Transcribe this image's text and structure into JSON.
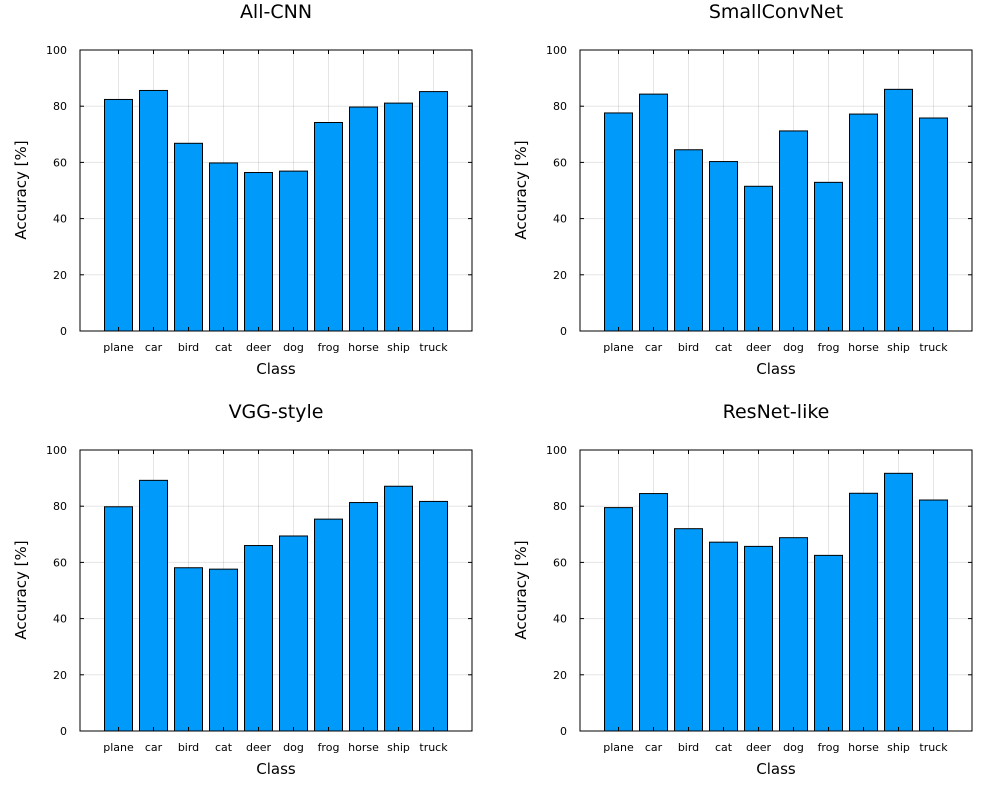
{
  "chart_data": [
    {
      "type": "bar",
      "title": "All-CNN",
      "xlabel": "Class",
      "ylabel": "Accuracy [%]",
      "categories": [
        "plane",
        "car",
        "bird",
        "cat",
        "deer",
        "dog",
        "frog",
        "horse",
        "ship",
        "truck"
      ],
      "values": [
        82.4,
        85.6,
        66.8,
        59.8,
        56.4,
        56.9,
        74.2,
        79.7,
        81.1,
        85.2
      ],
      "ylim": [
        0,
        100
      ],
      "yticks": [
        0,
        20,
        40,
        60,
        80,
        100
      ],
      "grid": true,
      "color": "#009AFA"
    },
    {
      "type": "bar",
      "title": "SmallConvNet",
      "xlabel": "Class",
      "ylabel": "Accuracy [%]",
      "categories": [
        "plane",
        "car",
        "bird",
        "cat",
        "deer",
        "dog",
        "frog",
        "horse",
        "ship",
        "truck"
      ],
      "values": [
        77.6,
        84.3,
        64.5,
        60.3,
        51.5,
        71.2,
        52.9,
        77.2,
        86.0,
        75.8
      ],
      "ylim": [
        0,
        100
      ],
      "yticks": [
        0,
        20,
        40,
        60,
        80,
        100
      ],
      "grid": true,
      "color": "#009AFA"
    },
    {
      "type": "bar",
      "title": "VGG-style",
      "xlabel": "Class",
      "ylabel": "Accuracy [%]",
      "categories": [
        "plane",
        "car",
        "bird",
        "cat",
        "deer",
        "dog",
        "frog",
        "horse",
        "ship",
        "truck"
      ],
      "values": [
        79.8,
        89.2,
        58.1,
        57.6,
        66.0,
        69.4,
        75.4,
        81.3,
        87.1,
        81.7
      ],
      "ylim": [
        0,
        100
      ],
      "yticks": [
        0,
        20,
        40,
        60,
        80,
        100
      ],
      "grid": true,
      "color": "#009AFA"
    },
    {
      "type": "bar",
      "title": "ResNet-like",
      "xlabel": "Class",
      "ylabel": "Accuracy [%]",
      "categories": [
        "plane",
        "car",
        "bird",
        "cat",
        "deer",
        "dog",
        "frog",
        "horse",
        "ship",
        "truck"
      ],
      "values": [
        79.5,
        84.5,
        72.0,
        67.2,
        65.7,
        68.8,
        62.5,
        84.6,
        91.7,
        82.2
      ],
      "ylim": [
        0,
        100
      ],
      "yticks": [
        0,
        20,
        40,
        60,
        80,
        100
      ],
      "grid": true,
      "color": "#009AFA"
    }
  ]
}
